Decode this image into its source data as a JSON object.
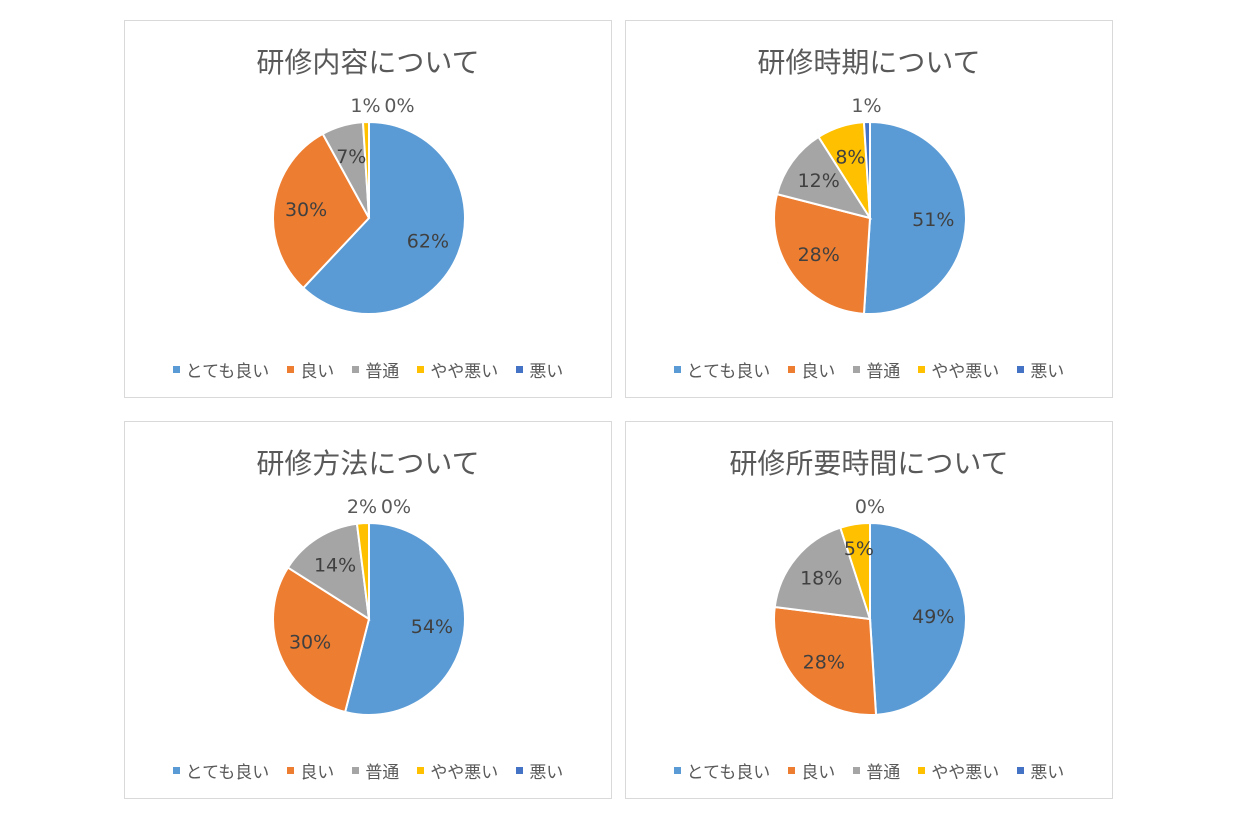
{
  "colors": {
    "very_good": "#5b9bd5",
    "good": "#ed7d31",
    "normal": "#a5a5a5",
    "somewhat_bad": "#ffc000",
    "bad": "#4472c4"
  },
  "legend": [
    "とても良い",
    "良い",
    "普通",
    "やや悪い",
    "悪い"
  ],
  "chart_data": [
    {
      "type": "pie",
      "title": "研修内容について",
      "categories": [
        "とても良い",
        "良い",
        "普通",
        "やや悪い",
        "悪い"
      ],
      "values": [
        62,
        30,
        7,
        1,
        0
      ],
      "labels": [
        "62%",
        "30%",
        "7%",
        "1%",
        "0%"
      ],
      "legend_position": "bottom"
    },
    {
      "type": "pie",
      "title": "研修時期について",
      "categories": [
        "とても良い",
        "良い",
        "普通",
        "やや悪い",
        "悪い"
      ],
      "values": [
        51,
        28,
        12,
        8,
        1
      ],
      "labels": [
        "51%",
        "28%",
        "12%",
        "8%",
        "1%"
      ],
      "legend_position": "bottom"
    },
    {
      "type": "pie",
      "title": "研修方法について",
      "categories": [
        "とても良い",
        "良い",
        "普通",
        "やや悪い",
        "悪い"
      ],
      "values": [
        54,
        30,
        14,
        2,
        0
      ],
      "labels": [
        "54%",
        "30%",
        "14%",
        "2%",
        "0%"
      ],
      "legend_position": "bottom"
    },
    {
      "type": "pie",
      "title": "研修所要時間について",
      "categories": [
        "とても良い",
        "良い",
        "普通",
        "やや悪い",
        "悪い"
      ],
      "values": [
        49,
        28,
        18,
        5,
        0
      ],
      "labels": [
        "49%",
        "28%",
        "18%",
        "5%",
        "0%"
      ],
      "legend_position": "bottom"
    }
  ]
}
